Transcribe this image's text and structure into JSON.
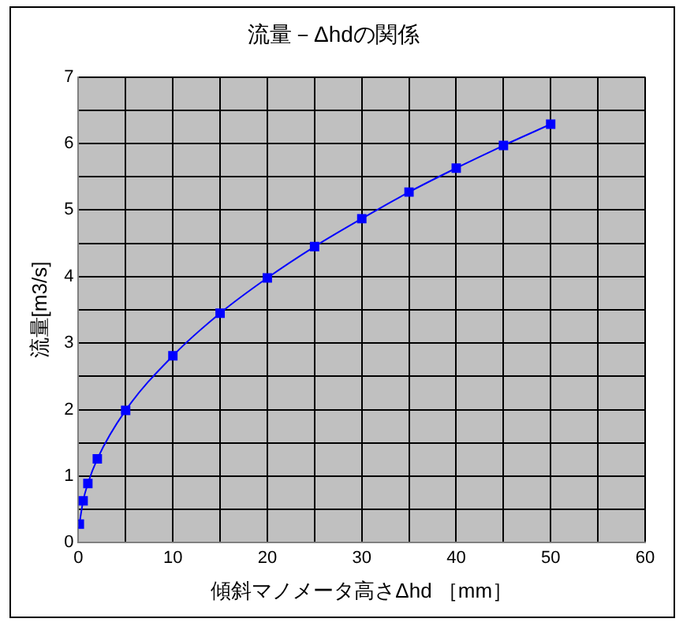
{
  "chart_data": {
    "type": "line",
    "title": "流量－Δhdの関係",
    "xlabel": "傾斜マノメータ高さΔhd ［mm］",
    "ylabel": "流量[m3/s]",
    "x": [
      0.1,
      0.5,
      1,
      2,
      5,
      10,
      15,
      20,
      25,
      30,
      35,
      40,
      45,
      50
    ],
    "series": [
      {
        "color": "#0000ff",
        "values": [
          0.28,
          0.63,
          0.89,
          1.26,
          1.99,
          2.81,
          3.45,
          3.98,
          4.45,
          4.87,
          5.27,
          5.63,
          5.97,
          6.29
        ]
      }
    ],
    "xlim": [
      0,
      60
    ],
    "xticks": [
      0,
      {
        "value": 5,
        "label": null
      },
      10,
      {
        "value": 15,
        "label": null
      },
      20,
      {
        "value": 25,
        "label": null
      },
      30,
      {
        "value": 35,
        "label": null
      },
      40,
      {
        "value": 45,
        "label": null
      },
      50,
      {
        "value": 55,
        "label": null
      },
      60
    ],
    "ylim": [
      0,
      7
    ],
    "yticks": [
      0,
      {
        "value": 0.5,
        "label": null
      },
      1,
      {
        "value": 1.5,
        "label": null
      },
      2,
      {
        "value": 2.5,
        "label": null
      },
      3,
      {
        "value": 3.5,
        "label": null
      },
      4,
      {
        "value": 4.5,
        "label": null
      },
      5,
      {
        "value": 5.5,
        "label": null
      },
      6,
      {
        "value": 6.5,
        "label": null
      },
      7
    ],
    "grid": true,
    "legend": false,
    "marker": "square",
    "line_style": "solid"
  }
}
